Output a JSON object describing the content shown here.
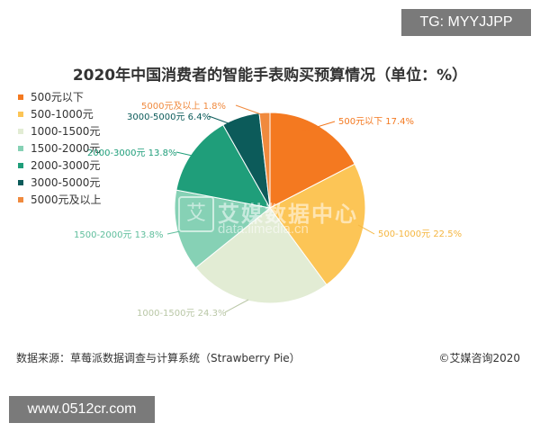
{
  "overlay": {
    "tag": "TG: MYYJJPP",
    "site": "www.0512cr.com"
  },
  "chart_data": {
    "type": "pie",
    "title": "2020年中国消费者的智能手表购买预算情况（单位：%）",
    "unit": "%",
    "slices": [
      {
        "label": "500元以下",
        "value": 17.4,
        "color": "#f47920",
        "data_label": "500元以下 17.4%"
      },
      {
        "label": "500-1000元",
        "value": 22.5,
        "color": "#fcc556",
        "data_label": "500-1000元 22.5%"
      },
      {
        "label": "1000-1500元",
        "value": 24.3,
        "color": "#e2ecd4",
        "data_label": "1000-1500元 24.3%"
      },
      {
        "label": "1500-2000元",
        "value": 13.8,
        "color": "#86d1b5",
        "data_label": "1500-2000元 13.8%"
      },
      {
        "label": "2000-3000元",
        "value": 13.8,
        "color": "#1f9e7a",
        "data_label": "2000-3000元 13.8%"
      },
      {
        "label": "3000-5000元",
        "value": 6.4,
        "color": "#0c5b5a",
        "data_label": "3000-5000元 6.4%"
      },
      {
        "label": "5000元及以上",
        "value": 1.8,
        "color": "#f08a3e",
        "data_label": "5000元及以上 1.8%"
      }
    ],
    "legend": [
      "500元以下",
      "500-1000元",
      "1000-1500元",
      "1500-2000元",
      "2000-3000元",
      "3000-5000元",
      "5000元及以上"
    ],
    "legend_position": "top-left"
  },
  "watermark": {
    "logo_glyph": "艾",
    "name_cn": "艾媒数据中心",
    "name_en": "data.iimedia.cn"
  },
  "footer": {
    "source": "数据来源：草莓派数据调查与计算系统（Strawberry Pie）",
    "copyright": "©艾媒咨询2020"
  }
}
